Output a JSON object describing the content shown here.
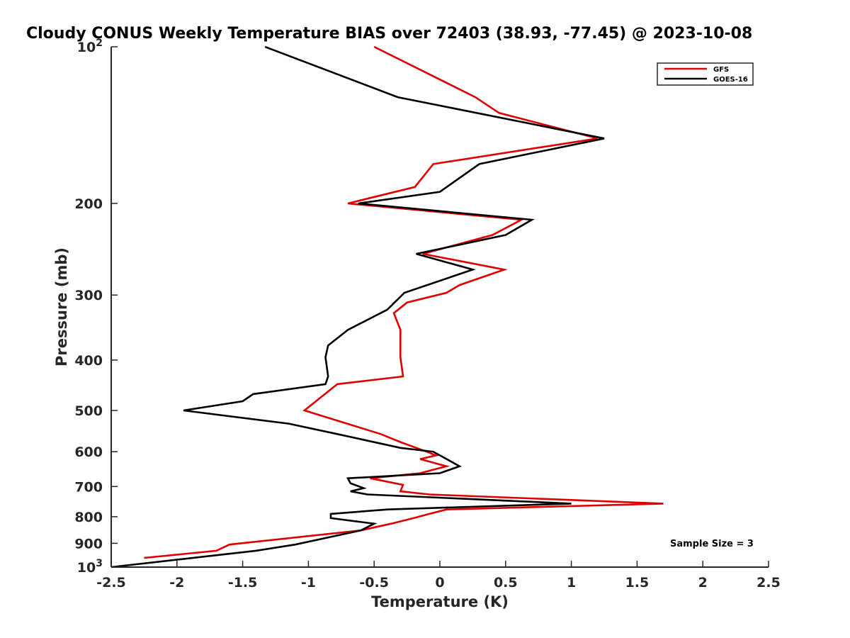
{
  "chart_data": {
    "type": "line",
    "title": "Cloudy CONUS Weekly Temperature BIAS over 72403 (38.93, -77.45) @ 2023-10-08",
    "xlabel": "Temperature (K)",
    "ylabel": "Pressure (mb)",
    "xlim": [
      -2.5,
      2.5
    ],
    "ylim": [
      100,
      1000
    ],
    "y_scale": "log",
    "y_reversed": true,
    "grid": false,
    "x_ticks": [
      -2.5,
      -2,
      -1.5,
      -1,
      -0.5,
      0,
      0.5,
      1,
      1.5,
      2,
      2.5
    ],
    "x_tick_labels": [
      "-2.5",
      "-2",
      "-1.5",
      "-1",
      "-0.5",
      "0",
      "0.5",
      "1",
      "1.5",
      "2",
      "2.5"
    ],
    "y_ticks": [
      {
        "value": 100,
        "label": "10",
        "exp": "2"
      },
      {
        "value": 200,
        "label": "200"
      },
      {
        "value": 300,
        "label": "300"
      },
      {
        "value": 400,
        "label": "400"
      },
      {
        "value": 500,
        "label": "500"
      },
      {
        "value": 600,
        "label": "600"
      },
      {
        "value": 700,
        "label": "700"
      },
      {
        "value": 800,
        "label": "800"
      },
      {
        "value": 900,
        "label": "900"
      },
      {
        "value": 1000,
        "label": "10",
        "exp": "3"
      }
    ],
    "legend_position": "top-right",
    "annotation": "Sample Size = 3",
    "series": [
      {
        "name": "GFS",
        "color": "#e00000",
        "points": [
          [
            -0.5,
            100
          ],
          [
            0.27,
            125
          ],
          [
            0.45,
            134
          ],
          [
            1.2,
            150
          ],
          [
            -0.05,
            168
          ],
          [
            -0.19,
            186
          ],
          [
            -0.7,
            200
          ],
          [
            0.62,
            215
          ],
          [
            0.4,
            230
          ],
          [
            -0.13,
            250
          ],
          [
            0.49,
            268
          ],
          [
            0.15,
            287
          ],
          [
            0.05,
            297
          ],
          [
            -0.25,
            310
          ],
          [
            -0.35,
            325
          ],
          [
            -0.3,
            350
          ],
          [
            -0.3,
            375
          ],
          [
            -0.3,
            395
          ],
          [
            -0.28,
            430
          ],
          [
            -0.78,
            445
          ],
          [
            -1.03,
            500
          ],
          [
            -0.45,
            555
          ],
          [
            -0.3,
            575
          ],
          [
            -0.1,
            600
          ],
          [
            -0.03,
            610
          ],
          [
            -0.15,
            620
          ],
          [
            0.05,
            640
          ],
          [
            -0.15,
            660
          ],
          [
            -0.53,
            675
          ],
          [
            -0.28,
            695
          ],
          [
            -0.3,
            715
          ],
          [
            -0.08,
            725
          ],
          [
            1.7,
            755
          ],
          [
            0.05,
            775
          ],
          [
            -0.08,
            790
          ],
          [
            -0.2,
            805
          ],
          [
            -0.37,
            825
          ],
          [
            -0.6,
            850
          ],
          [
            -1.6,
            905
          ],
          [
            -1.7,
            930
          ],
          [
            -2.25,
            960
          ]
        ]
      },
      {
        "name": "GOES-16",
        "color": "#000000",
        "points": [
          [
            -1.33,
            100
          ],
          [
            -0.32,
            125
          ],
          [
            1.25,
            150
          ],
          [
            0.3,
            168
          ],
          [
            0,
            190
          ],
          [
            -0.62,
            200
          ],
          [
            0.7,
            215
          ],
          [
            0.5,
            230
          ],
          [
            -0.18,
            250
          ],
          [
            0.25,
            268
          ],
          [
            -0.27,
            297
          ],
          [
            -0.4,
            320
          ],
          [
            -0.7,
            350
          ],
          [
            -0.85,
            375
          ],
          [
            -0.87,
            395
          ],
          [
            -0.85,
            430
          ],
          [
            -0.87,
            445
          ],
          [
            -1.42,
            465
          ],
          [
            -1.5,
            480
          ],
          [
            -1.95,
            500
          ],
          [
            -1.15,
            530
          ],
          [
            -0.78,
            555
          ],
          [
            -0.3,
            590
          ],
          [
            -0.05,
            600
          ],
          [
            0,
            610
          ],
          [
            0.15,
            640
          ],
          [
            0,
            660
          ],
          [
            -0.7,
            675
          ],
          [
            -0.68,
            690
          ],
          [
            -0.58,
            705
          ],
          [
            -0.68,
            715
          ],
          [
            -0.55,
            725
          ],
          [
            1.0,
            755
          ],
          [
            -0.4,
            775
          ],
          [
            -0.83,
            790
          ],
          [
            -0.83,
            805
          ],
          [
            -0.5,
            825
          ],
          [
            -0.6,
            850
          ],
          [
            -1.1,
            905
          ],
          [
            -1.4,
            930
          ],
          [
            -2.5,
            1000
          ]
        ]
      }
    ]
  }
}
